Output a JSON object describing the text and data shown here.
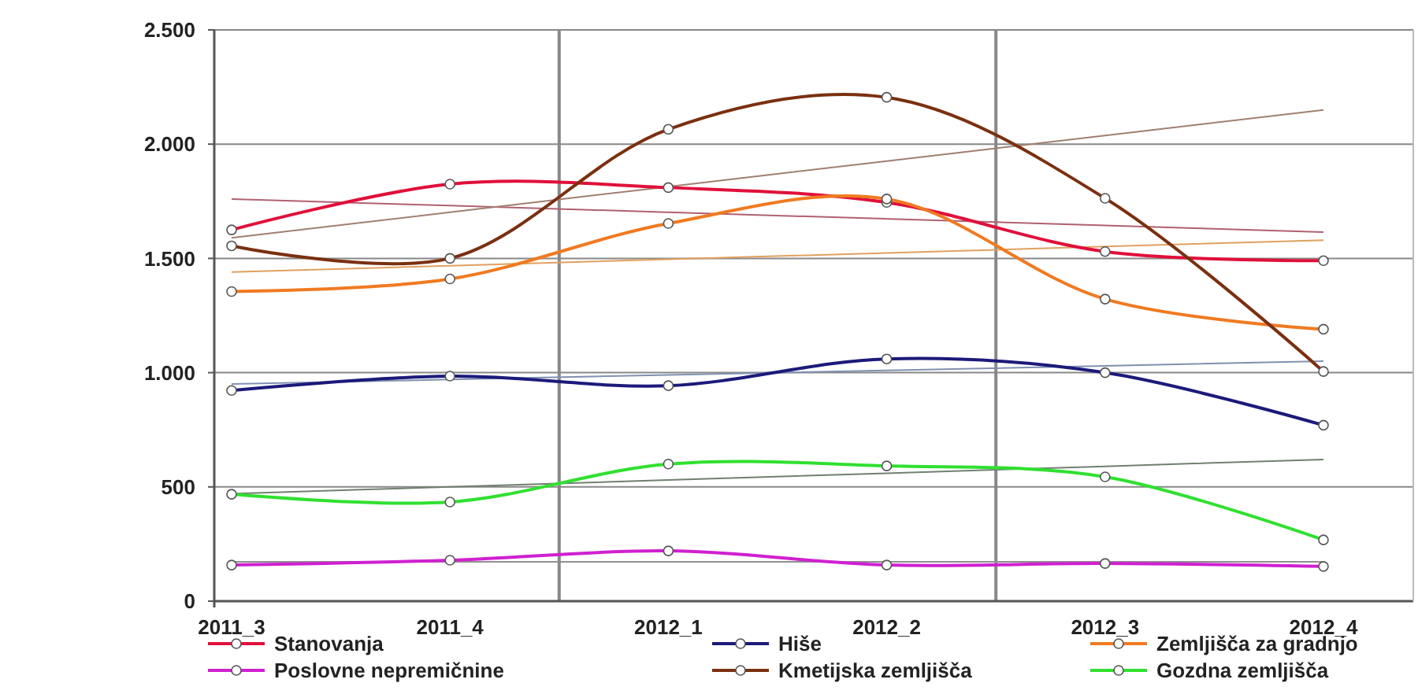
{
  "chart_data": {
    "type": "line",
    "categories": [
      "2011_3",
      "2011_4",
      "2012_1",
      "2012_2",
      "2012_3",
      "2012_4"
    ],
    "series": [
      {
        "name": "Stanovanja",
        "color": "#e0103a",
        "values": [
          1625,
          1825,
          1810,
          1745,
          1530,
          1490
        ]
      },
      {
        "name": "Hiše",
        "color": "#1c1a7a",
        "values": [
          922,
          985,
          943,
          1060,
          1000,
          770
        ]
      },
      {
        "name": "Zemljišča za gradnjo",
        "color": "#f07a20",
        "values": [
          1355,
          1410,
          1653,
          1760,
          1322,
          1190
        ]
      },
      {
        "name": "Poslovne nepremičnine",
        "color": "#d020d0",
        "values": [
          158,
          179,
          220,
          158,
          165,
          152
        ]
      },
      {
        "name": "Kmetijska zemljišča",
        "color": "#7a3010",
        "values": [
          1555,
          1500,
          2065,
          2205,
          1763,
          1005
        ]
      },
      {
        "name": "Gozdna zemljišča",
        "color": "#30e030",
        "values": [
          468,
          434,
          600,
          592,
          544,
          268
        ]
      },
      {
        "color": "#b06070",
        "marker": "none",
        "values": [
          1760,
          1731,
          1702,
          1673,
          1644,
          1615
        ]
      },
      {
        "color": "#8090b0",
        "marker": "none",
        "values": [
          950,
          970,
          990,
          1010,
          1030,
          1050
        ]
      },
      {
        "color": "#e0a060",
        "marker": "none",
        "values": [
          1440,
          1468,
          1496,
          1524,
          1552,
          1580
        ]
      },
      {
        "color": "#909090",
        "marker": "none",
        "values": [
          172,
          172,
          172,
          172,
          172,
          172
        ]
      },
      {
        "color": "#a08070",
        "marker": "none",
        "values": [
          1590,
          1702,
          1814,
          1926,
          2038,
          2150
        ]
      },
      {
        "color": "#708070",
        "marker": "none",
        "values": [
          470,
          500,
          530,
          560,
          590,
          620
        ]
      }
    ],
    "ylim": [
      0,
      2500
    ],
    "yticks": [
      0,
      {
        "value": 500,
        "label": "500"
      },
      {
        "value": 1000,
        "label": "1.000"
      },
      {
        "value": 1500,
        "label": "1.500"
      },
      {
        "value": 2000,
        "label": "2.000"
      },
      {
        "value": 2500,
        "label": "2.500"
      }
    ],
    "grid": true,
    "legend": "bottom",
    "marker": "circle"
  }
}
